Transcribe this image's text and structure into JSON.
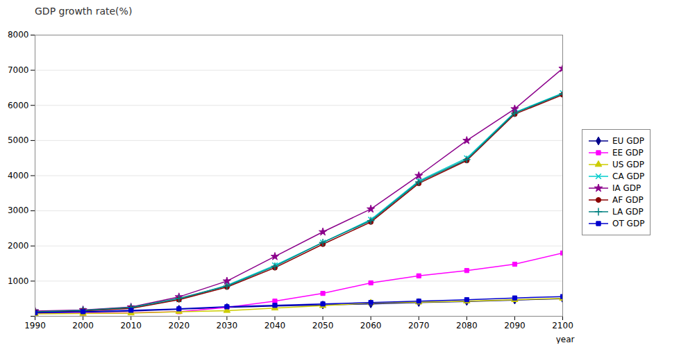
{
  "chart_data": {
    "type": "line",
    "title": "GDP growth rate(%)",
    "xlabel": "year",
    "x": [
      1990,
      2000,
      2010,
      2020,
      2030,
      2040,
      2050,
      2060,
      2070,
      2080,
      2090,
      2100
    ],
    "series": [
      {
        "name": "EU GDP",
        "color": "#00008B",
        "marker": "diamond",
        "values": [
          100,
          120,
          150,
          200,
          250,
          290,
          320,
          350,
          390,
          420,
          460,
          500
        ]
      },
      {
        "name": "EE GDP",
        "color": "#FF00FF",
        "marker": "square",
        "values": [
          80,
          90,
          100,
          130,
          250,
          430,
          650,
          950,
          1150,
          1300,
          1480,
          1800
        ]
      },
      {
        "name": "US GDP",
        "color": "#CCCC00",
        "marker": "triangle",
        "values": [
          70,
          80,
          90,
          130,
          160,
          230,
          300,
          380,
          400,
          430,
          470,
          510
        ]
      },
      {
        "name": "CA GDP",
        "color": "#00CCCC",
        "marker": "times",
        "values": [
          130,
          160,
          230,
          480,
          880,
          1450,
          2100,
          2750,
          3850,
          4500,
          5800,
          6350
        ]
      },
      {
        "name": "IA GDP",
        "color": "#8B008B",
        "marker": "star",
        "values": [
          150,
          180,
          260,
          550,
          1000,
          1700,
          2400,
          3050,
          4000,
          5000,
          5900,
          7050
        ]
      },
      {
        "name": "AF GDP",
        "color": "#8B0000",
        "marker": "circle",
        "values": [
          120,
          155,
          220,
          470,
          830,
          1380,
          2050,
          2680,
          3780,
          4430,
          5750,
          6300
        ]
      },
      {
        "name": "LA GDP",
        "color": "#008080",
        "marker": "plus",
        "values": [
          130,
          170,
          250,
          510,
          860,
          1420,
          2100,
          2720,
          3820,
          4460,
          5780,
          6330
        ]
      },
      {
        "name": "OT GDP",
        "color": "#0000CD",
        "marker": "square",
        "values": [
          100,
          130,
          170,
          210,
          270,
          310,
          350,
          390,
          430,
          470,
          520,
          560
        ]
      }
    ],
    "xlim": [
      1990,
      2100
    ],
    "xticks": [
      1990,
      2000,
      2010,
      2020,
      2030,
      2040,
      2050,
      2060,
      2070,
      2080,
      2090,
      2100
    ],
    "ylim": [
      0,
      8000
    ],
    "yticks": [
      {
        "value": 0,
        "label": ""
      },
      1000,
      2000,
      3000,
      4000,
      5000,
      6000,
      7000,
      8000
    ],
    "grid": true,
    "legend": "right"
  }
}
